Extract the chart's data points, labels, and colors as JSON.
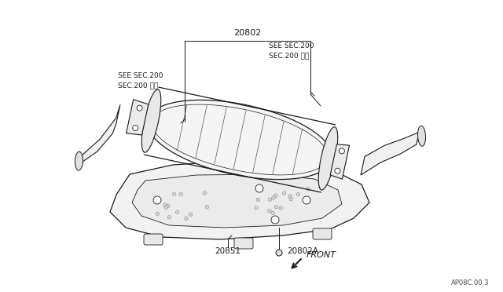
{
  "bg_color": "#ffffff",
  "line_color": "#1a1a1a",
  "label_20802": "20802",
  "label_20802A": "20802A",
  "label_20851": "20851",
  "label_see_sec_left": "SEE SEC.200\nSEC.200 参照",
  "label_see_sec_right": "SEE SEC.200\nSEC.200 参照",
  "label_front": "FRONT",
  "label_code": "AP08C.00.3",
  "figsize": [
    6.4,
    3.72
  ],
  "dpi": 100
}
